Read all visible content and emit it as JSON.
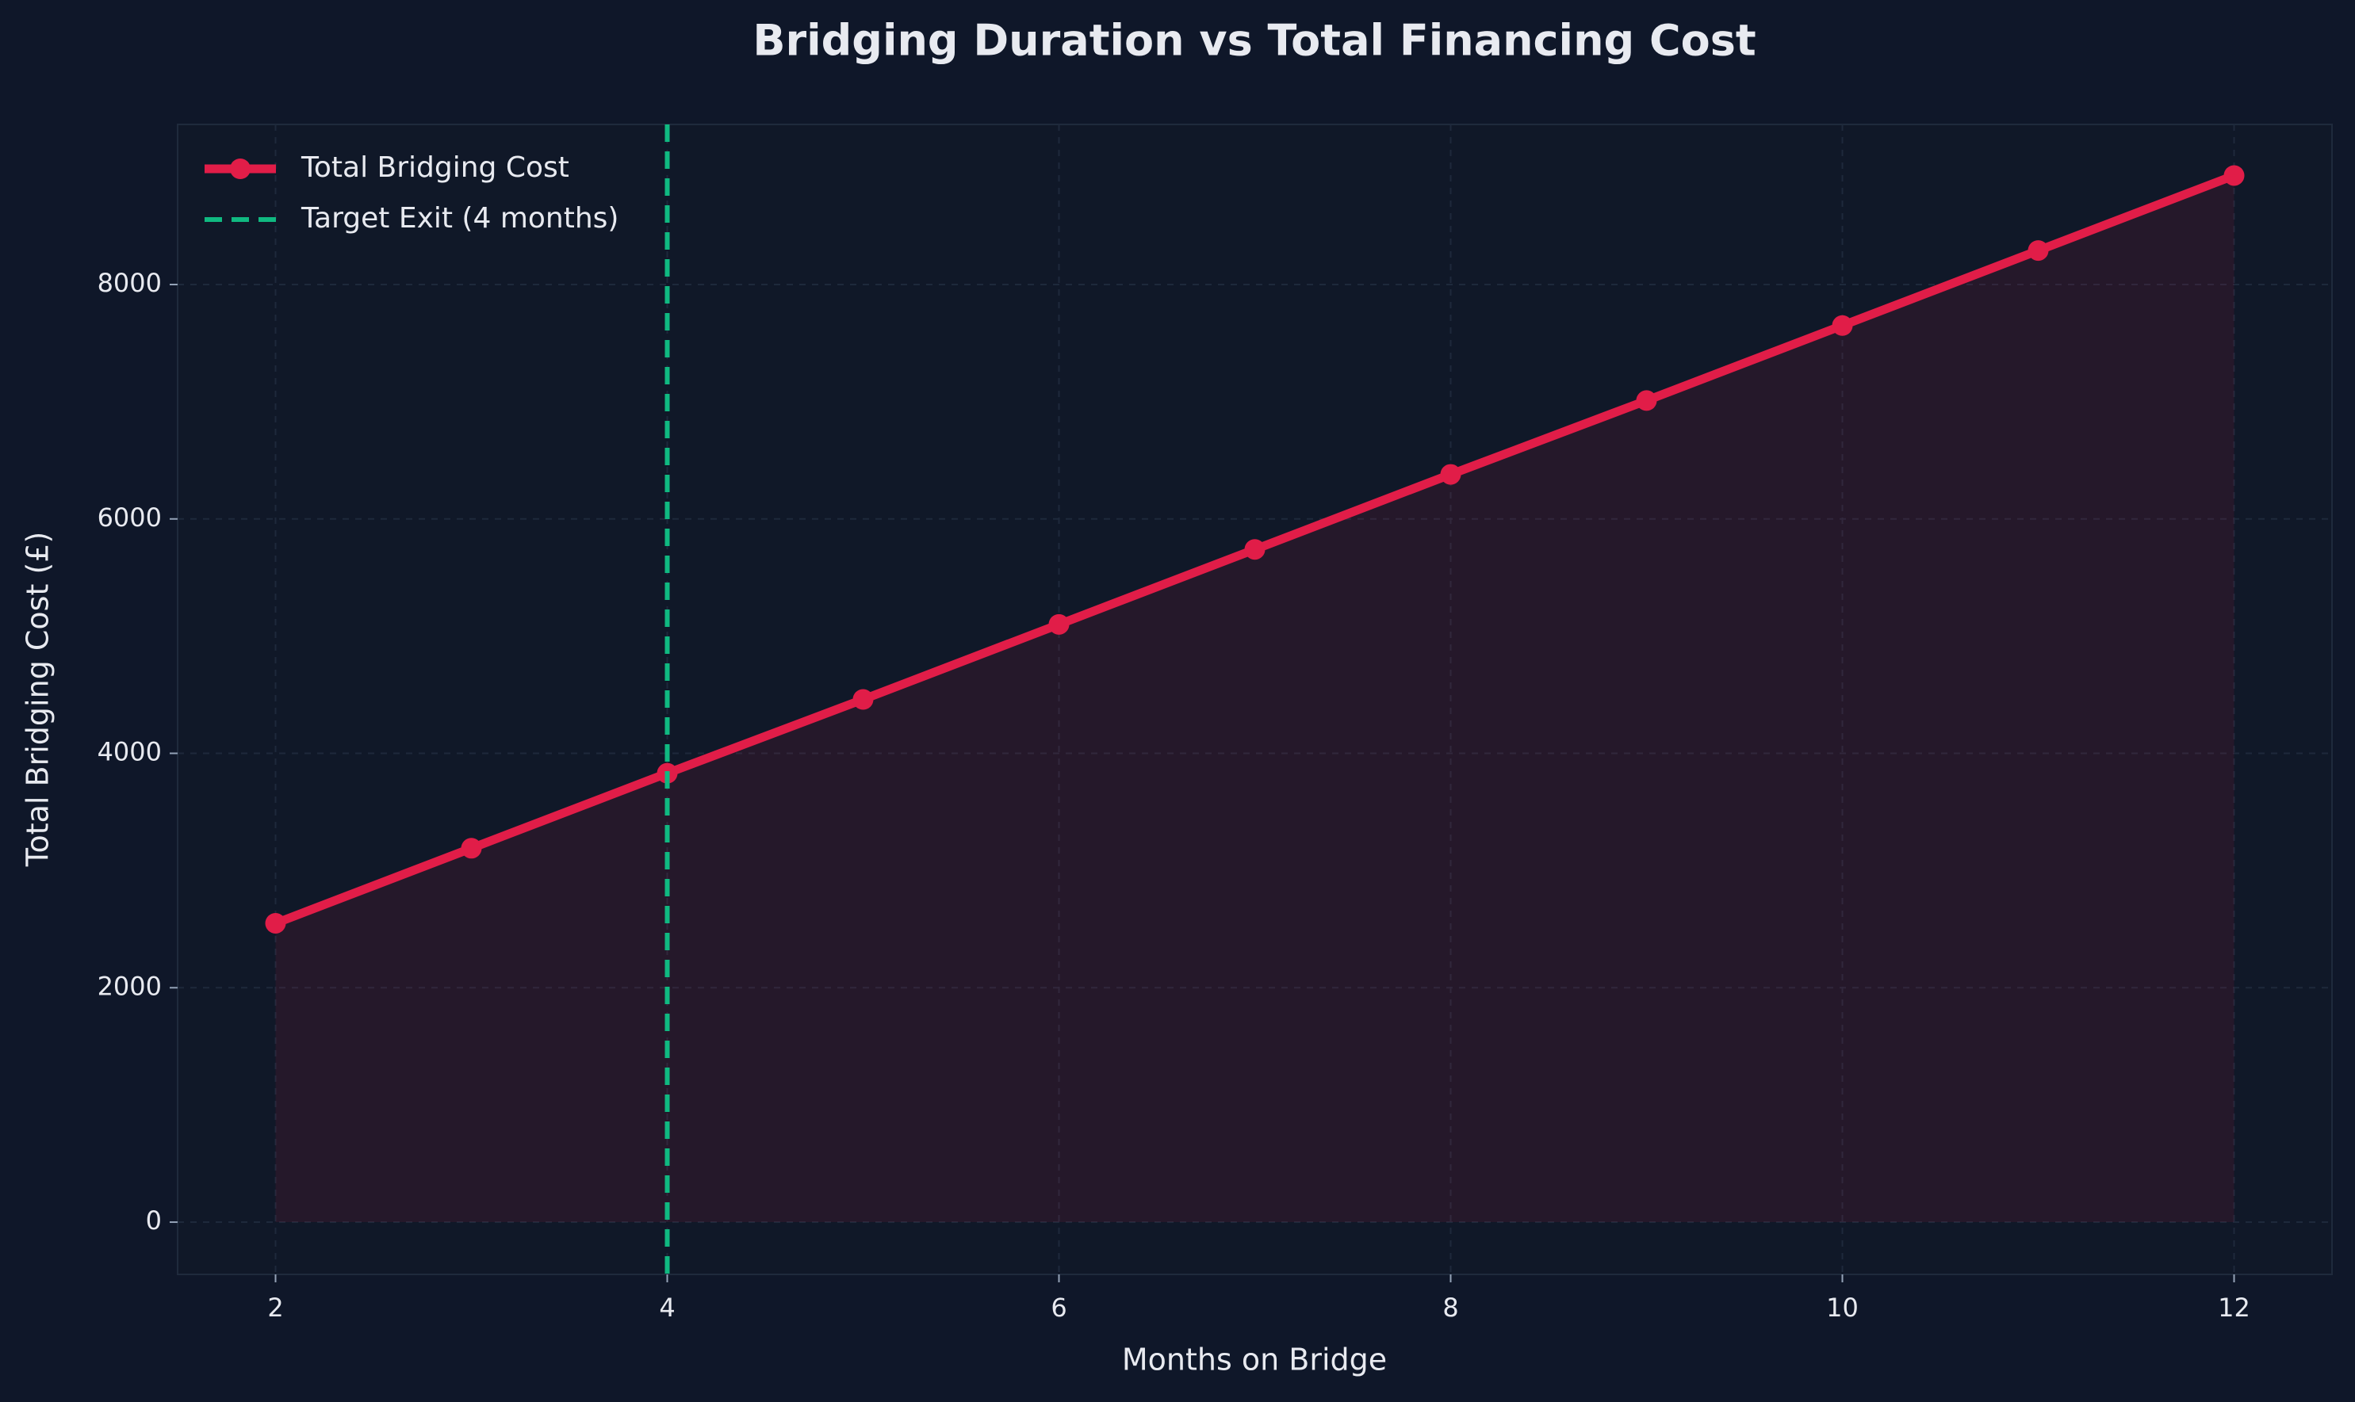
{
  "chart_data": {
    "type": "line",
    "title": "Bridging Duration vs Total Financing Cost",
    "x_label": "Months on Bridge",
    "y_label": "Total Bridging Cost (£)",
    "x": [
      2,
      3,
      4,
      5,
      6,
      7,
      8,
      9,
      10,
      11,
      12
    ],
    "series": [
      {
        "name": "Total Bridging Cost",
        "color": "#e11d48",
        "values": [
          2550,
          3190,
          3830,
          4460,
          5100,
          5740,
          6380,
          7010,
          7650,
          8290,
          8930
        ]
      }
    ],
    "vline": {
      "x": 4,
      "label": "Target Exit (4 months)",
      "color": "#10b981"
    },
    "xlim": [
      1.5,
      12.5
    ],
    "ylim": [
      -446,
      9366
    ],
    "xticks": [
      2,
      4,
      6,
      8,
      10,
      12
    ],
    "yticks": [
      0,
      2000,
      4000,
      6000,
      8000
    ],
    "grid": true,
    "fill_under": true,
    "legend": "upper left"
  }
}
